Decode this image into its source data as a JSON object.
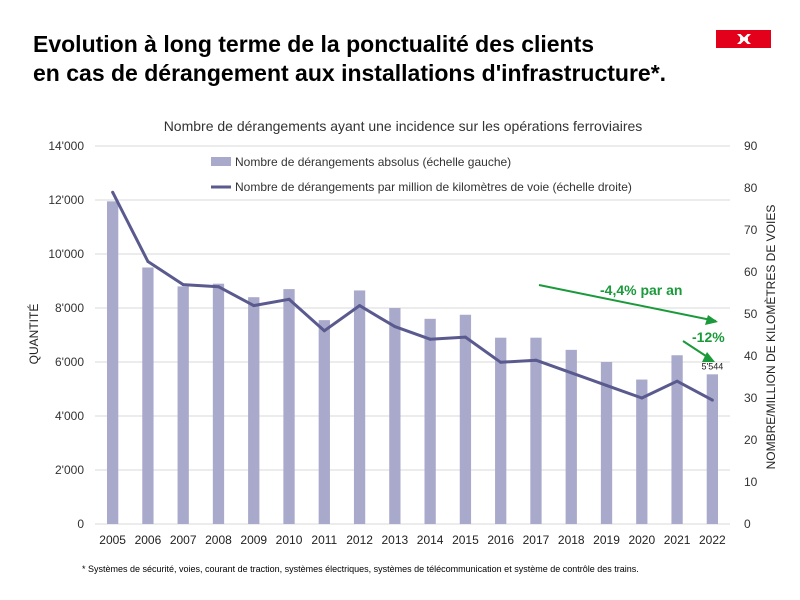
{
  "header": {
    "title_line1": "Evolution à long terme de la ponctualité des clients",
    "title_line2": "en cas de dérangement aux installations d'infrastructure*."
  },
  "logo": {
    "icon": "sbb-logo-icon",
    "color": "#e3001b"
  },
  "footnote": "* Systèmes de sécurité, voies, courant de traction, systèmes électriques, systèmes de télécommunication et système de contrôle des trains.",
  "chart_data": {
    "type": "bar",
    "title": "Nombre de dérangements ayant une incidence sur les opérations ferroviaires",
    "ylabel": "QUANTITÉ",
    "y2label": "NOMBRE/MILLION DE KILOMÈTRES DE VOIES",
    "categories": [
      "2005",
      "2006",
      "2007",
      "2008",
      "2009",
      "2010",
      "2011",
      "2012",
      "2013",
      "2014",
      "2015",
      "2016",
      "2017",
      "2018",
      "2019",
      "2020",
      "2021",
      "2022"
    ],
    "ylim": [
      0,
      14000
    ],
    "y2lim": [
      0,
      90
    ],
    "yticks": [
      "0",
      "2'000",
      "4'000",
      "6'000",
      "8'000",
      "10'000",
      "12'000",
      "14'000"
    ],
    "y2ticks": [
      "0",
      "10",
      "20",
      "30",
      "40",
      "50",
      "60",
      "70",
      "80",
      "90"
    ],
    "grid": true,
    "legend_position": "top",
    "series": [
      {
        "name": "Nombre de dérangements absolus (échelle gauche)",
        "type": "bar",
        "axis": "left",
        "color": "#a9aacb",
        "values": [
          11950,
          9500,
          8800,
          8900,
          8400,
          8700,
          7550,
          8650,
          8000,
          7600,
          7750,
          6900,
          6900,
          6450,
          6000,
          5350,
          6250,
          5544
        ]
      },
      {
        "name": "Nombre de dérangements par million de kilomètres de voie (échelle droite)",
        "type": "line",
        "axis": "right",
        "color": "#5a5a8f",
        "values": [
          79,
          62.5,
          57,
          56.5,
          52,
          53.5,
          46,
          52,
          47,
          44,
          44.5,
          38.5,
          39,
          36,
          33,
          30,
          34,
          29.5
        ]
      }
    ],
    "data_label": {
      "text": "5'544",
      "category": "2022"
    },
    "annotations": [
      {
        "text": "-4,4% par an",
        "color": "#1a9a3a"
      },
      {
        "text": "-12%",
        "color": "#1a9a3a"
      }
    ]
  }
}
